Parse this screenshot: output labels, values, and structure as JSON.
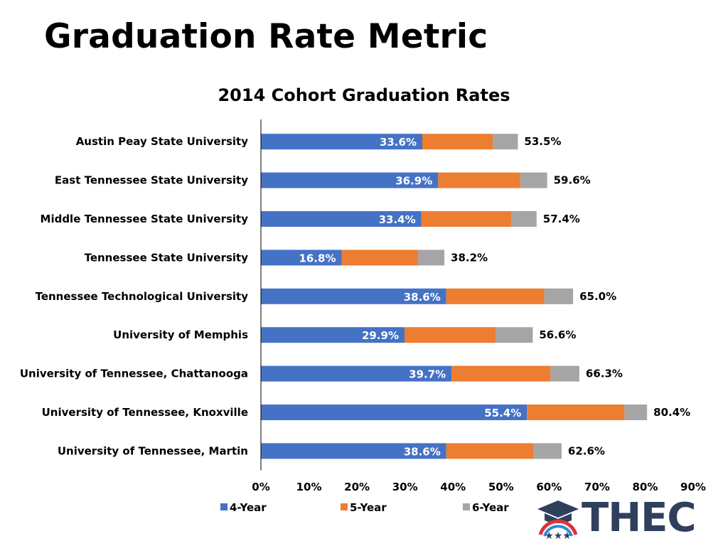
{
  "slide": {
    "title": "Graduation Rate Metric"
  },
  "chart_data": {
    "type": "bar",
    "orientation": "horizontal",
    "stacked": true,
    "title": "2014 Cohort Graduation Rates",
    "categories": [
      "Austin Peay State University",
      "East Tennessee State University",
      "Middle Tennessee State University",
      "Tennessee State University",
      "Tennessee Technological University",
      "University of Memphis",
      "University of Tennessee, Chattanooga",
      "University of Tennessee, Knoxville",
      "University of Tennessee, Martin"
    ],
    "series": [
      {
        "name": "4-Year",
        "color": "#4472C4",
        "values": [
          33.6,
          36.9,
          33.4,
          16.8,
          38.6,
          29.9,
          39.7,
          55.4,
          38.6
        ]
      },
      {
        "name": "5-Year",
        "color": "#ED7D31",
        "values": [
          14.7,
          17.1,
          18.8,
          15.9,
          20.4,
          19.0,
          20.6,
          20.3,
          18.2
        ]
      },
      {
        "name": "6-Year",
        "color": "#A5A5A5",
        "values": [
          5.2,
          5.6,
          5.2,
          5.5,
          6.0,
          7.7,
          6.0,
          4.7,
          5.8
        ]
      }
    ],
    "segment_labels": [
      "33.6%",
      "36.9%",
      "33.4%",
      "16.8%",
      "38.6%",
      "29.9%",
      "39.7%",
      "55.4%",
      "38.6%"
    ],
    "totals": [
      "53.5%",
      "59.6%",
      "57.4%",
      "38.2%",
      "65.0%",
      "56.6%",
      "66.3%",
      "80.4%",
      "62.6%"
    ],
    "xlim": [
      0,
      90
    ],
    "xticks": [
      "0%",
      "10%",
      "20%",
      "30%",
      "40%",
      "50%",
      "60%",
      "70%",
      "80%",
      "90%"
    ],
    "grid": false,
    "legend": "bottom"
  },
  "logo": {
    "text": "THEC"
  }
}
